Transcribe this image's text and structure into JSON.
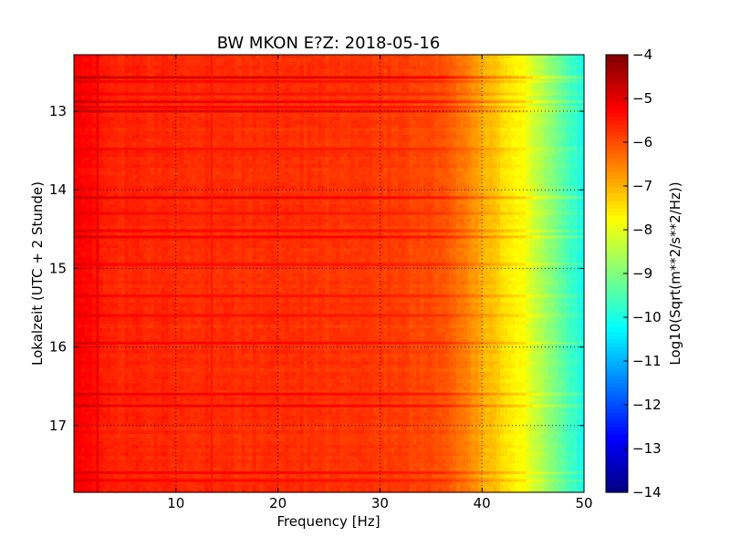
{
  "chart_data": {
    "type": "heatmap",
    "title": "BW MKON E?Z: 2018-05-16",
    "xlabel": "Frequency [Hz]",
    "ylabel": "Lokalzeit (UTC + 2 Stunde)",
    "colorbar_label": "Log10(Sqrt(m**2/s**2/Hz))",
    "xlim": [
      0,
      50
    ],
    "ylim": [
      12.28,
      17.85
    ],
    "y_inverted": true,
    "clim": [
      -14,
      -4
    ],
    "colormap": "jet",
    "grid": true,
    "x_ticks": [
      10,
      20,
      30,
      40,
      50
    ],
    "x_tick_labels": [
      "10",
      "20",
      "30",
      "40",
      "50"
    ],
    "y_ticks": [
      13,
      14,
      15,
      16,
      17
    ],
    "y_tick_labels": [
      "13",
      "14",
      "15",
      "16",
      "17"
    ],
    "colorbar_ticks": [
      -4,
      -5,
      -6,
      -7,
      -8,
      -9,
      -10,
      -11,
      -12,
      -13,
      -14
    ],
    "colorbar_tick_labels": [
      "−4",
      "−5",
      "−6",
      "−7",
      "−8",
      "−9",
      "−10",
      "−11",
      "−12",
      "−13",
      "−14"
    ],
    "frequency_profile": {
      "frequency_hz": [
        0,
        2,
        4,
        10,
        20,
        30,
        36,
        38,
        40,
        42,
        44,
        46,
        48,
        50
      ],
      "log10_amplitude": [
        -5.2,
        -5.4,
        -5.6,
        -5.65,
        -5.7,
        -5.8,
        -6.0,
        -6.4,
        -6.9,
        -7.4,
        -7.8,
        -8.6,
        -9.4,
        -10.1
      ]
    },
    "horizontal_bands": [
      {
        "time_h": 12.57,
        "offset": 0.75
      },
      {
        "time_h": 12.62,
        "offset": 0.35
      },
      {
        "time_h": 12.78,
        "offset": 0.3
      },
      {
        "time_h": 12.88,
        "offset": 0.55
      },
      {
        "time_h": 12.95,
        "offset": 0.4
      },
      {
        "time_h": 13.0,
        "offset": 0.45
      },
      {
        "time_h": 13.48,
        "offset": 0.25
      },
      {
        "time_h": 14.1,
        "offset": 0.55
      },
      {
        "time_h": 14.3,
        "offset": 0.3
      },
      {
        "time_h": 14.52,
        "offset": 0.35
      },
      {
        "time_h": 14.6,
        "offset": 0.5
      },
      {
        "time_h": 14.95,
        "offset": 0.3
      },
      {
        "time_h": 15.35,
        "offset": 0.3
      },
      {
        "time_h": 15.6,
        "offset": 0.3
      },
      {
        "time_h": 15.95,
        "offset": 0.4
      },
      {
        "time_h": 16.6,
        "offset": 0.45
      },
      {
        "time_h": 16.75,
        "offset": 0.5
      },
      {
        "time_h": 17.6,
        "offset": 0.4
      },
      {
        "time_h": 17.7,
        "offset": 0.35
      }
    ],
    "vertical_lines": [
      {
        "frequency_hz": 2.3,
        "offset": 0.45
      },
      {
        "frequency_hz": 13.5,
        "offset": 0.3
      }
    ]
  }
}
